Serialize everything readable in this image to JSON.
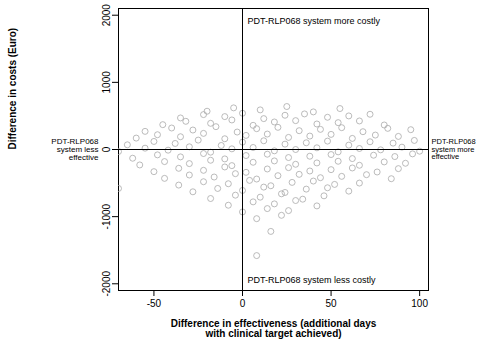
{
  "chart_data": {
    "type": "scatter",
    "xlabel": "Difference in effectiveness (additional days with clinical target achieved)",
    "ylabel": "Difference in costs (Euro)",
    "annotations": {
      "top": "PDT-RLP068 system more costly",
      "bottom": "PDT-RLP068 system less costly",
      "left": "PDT-RLP068 system less effective",
      "right": "PDT-RLP068 system more effective"
    },
    "color": "#aaaaaa",
    "marker": "circle",
    "xlim": [
      -70,
      105
    ],
    "xticks": [
      -50,
      0,
      50,
      100
    ],
    "ylim": [
      -2100,
      2100
    ],
    "yticks": [
      -2000,
      -1000,
      0,
      1000,
      2000
    ],
    "x": [
      -20,
      -5,
      10,
      25,
      40,
      55,
      -35,
      -22,
      -10,
      0,
      12,
      24,
      35,
      48,
      60,
      72,
      -45,
      -32,
      -18,
      -6,
      6,
      18,
      30,
      42,
      54,
      66,
      80,
      -55,
      -40,
      -28,
      -15,
      -3,
      8,
      20,
      32,
      44,
      56,
      68,
      82,
      95,
      -60,
      -48,
      -35,
      -22,
      -10,
      2,
      14,
      26,
      38,
      50,
      62,
      75,
      88,
      -65,
      -50,
      -38,
      -25,
      -12,
      0,
      12,
      24,
      36,
      48,
      60,
      72,
      85,
      97,
      -70,
      -55,
      -42,
      -30,
      -18,
      -6,
      6,
      18,
      30,
      42,
      54,
      66,
      78,
      90,
      100,
      -62,
      -48,
      -35,
      -22,
      -10,
      2,
      14,
      26,
      38,
      50,
      62,
      74,
      86,
      96,
      -58,
      -44,
      -30,
      -18,
      -6,
      6,
      18,
      30,
      42,
      54,
      66,
      80,
      92,
      -50,
      -36,
      -22,
      -10,
      2,
      14,
      26,
      38,
      50,
      62,
      76,
      88,
      -44,
      -30,
      -16,
      -4,
      8,
      20,
      32,
      44,
      56,
      70,
      84,
      -36,
      -22,
      -8,
      4,
      16,
      28,
      40,
      52,
      66,
      -70,
      -28,
      -14,
      0,
      12,
      24,
      36,
      48,
      60,
      -18,
      -4,
      10,
      22,
      34,
      46,
      -8,
      6,
      18,
      30,
      42,
      0,
      14,
      26,
      8,
      22,
      16,
      8
    ],
    "values": [
      570,
      620,
      590,
      640,
      560,
      610,
      470,
      520,
      490,
      540,
      460,
      510,
      530,
      480,
      500,
      525,
      370,
      420,
      390,
      440,
      360,
      410,
      430,
      380,
      400,
      425,
      365,
      270,
      320,
      290,
      340,
      260,
      310,
      330,
      280,
      300,
      325,
      265,
      315,
      295,
      170,
      220,
      190,
      240,
      160,
      210,
      230,
      180,
      200,
      225,
      165,
      215,
      195,
      70,
      120,
      90,
      140,
      60,
      110,
      130,
      80,
      100,
      125,
      65,
      115,
      95,
      135,
      -30,
      20,
      -10,
      40,
      -40,
      10,
      30,
      -20,
      0,
      25,
      -35,
      15,
      -5,
      35,
      -25,
      -130,
      -80,
      -110,
      -60,
      -140,
      -90,
      -70,
      -120,
      -100,
      -75,
      -135,
      -85,
      -105,
      -65,
      -230,
      -180,
      -210,
      -160,
      -240,
      -190,
      -170,
      -220,
      -200,
      -175,
      -235,
      -185,
      -205,
      -330,
      -280,
      -310,
      -260,
      -340,
      -290,
      -270,
      -320,
      -300,
      -275,
      -335,
      -285,
      -430,
      -380,
      -410,
      -360,
      -440,
      -390,
      -370,
      -420,
      -400,
      -375,
      -435,
      -530,
      -480,
      -510,
      -460,
      -540,
      -490,
      -470,
      -520,
      -500,
      -580,
      -630,
      -580,
      -610,
      -560,
      -640,
      -590,
      -570,
      -620,
      -730,
      -680,
      -710,
      -660,
      -740,
      -690,
      -830,
      -780,
      -810,
      -760,
      -840,
      -930,
      -880,
      -910,
      -1030,
      -980,
      -1220,
      -1580
    ]
  }
}
